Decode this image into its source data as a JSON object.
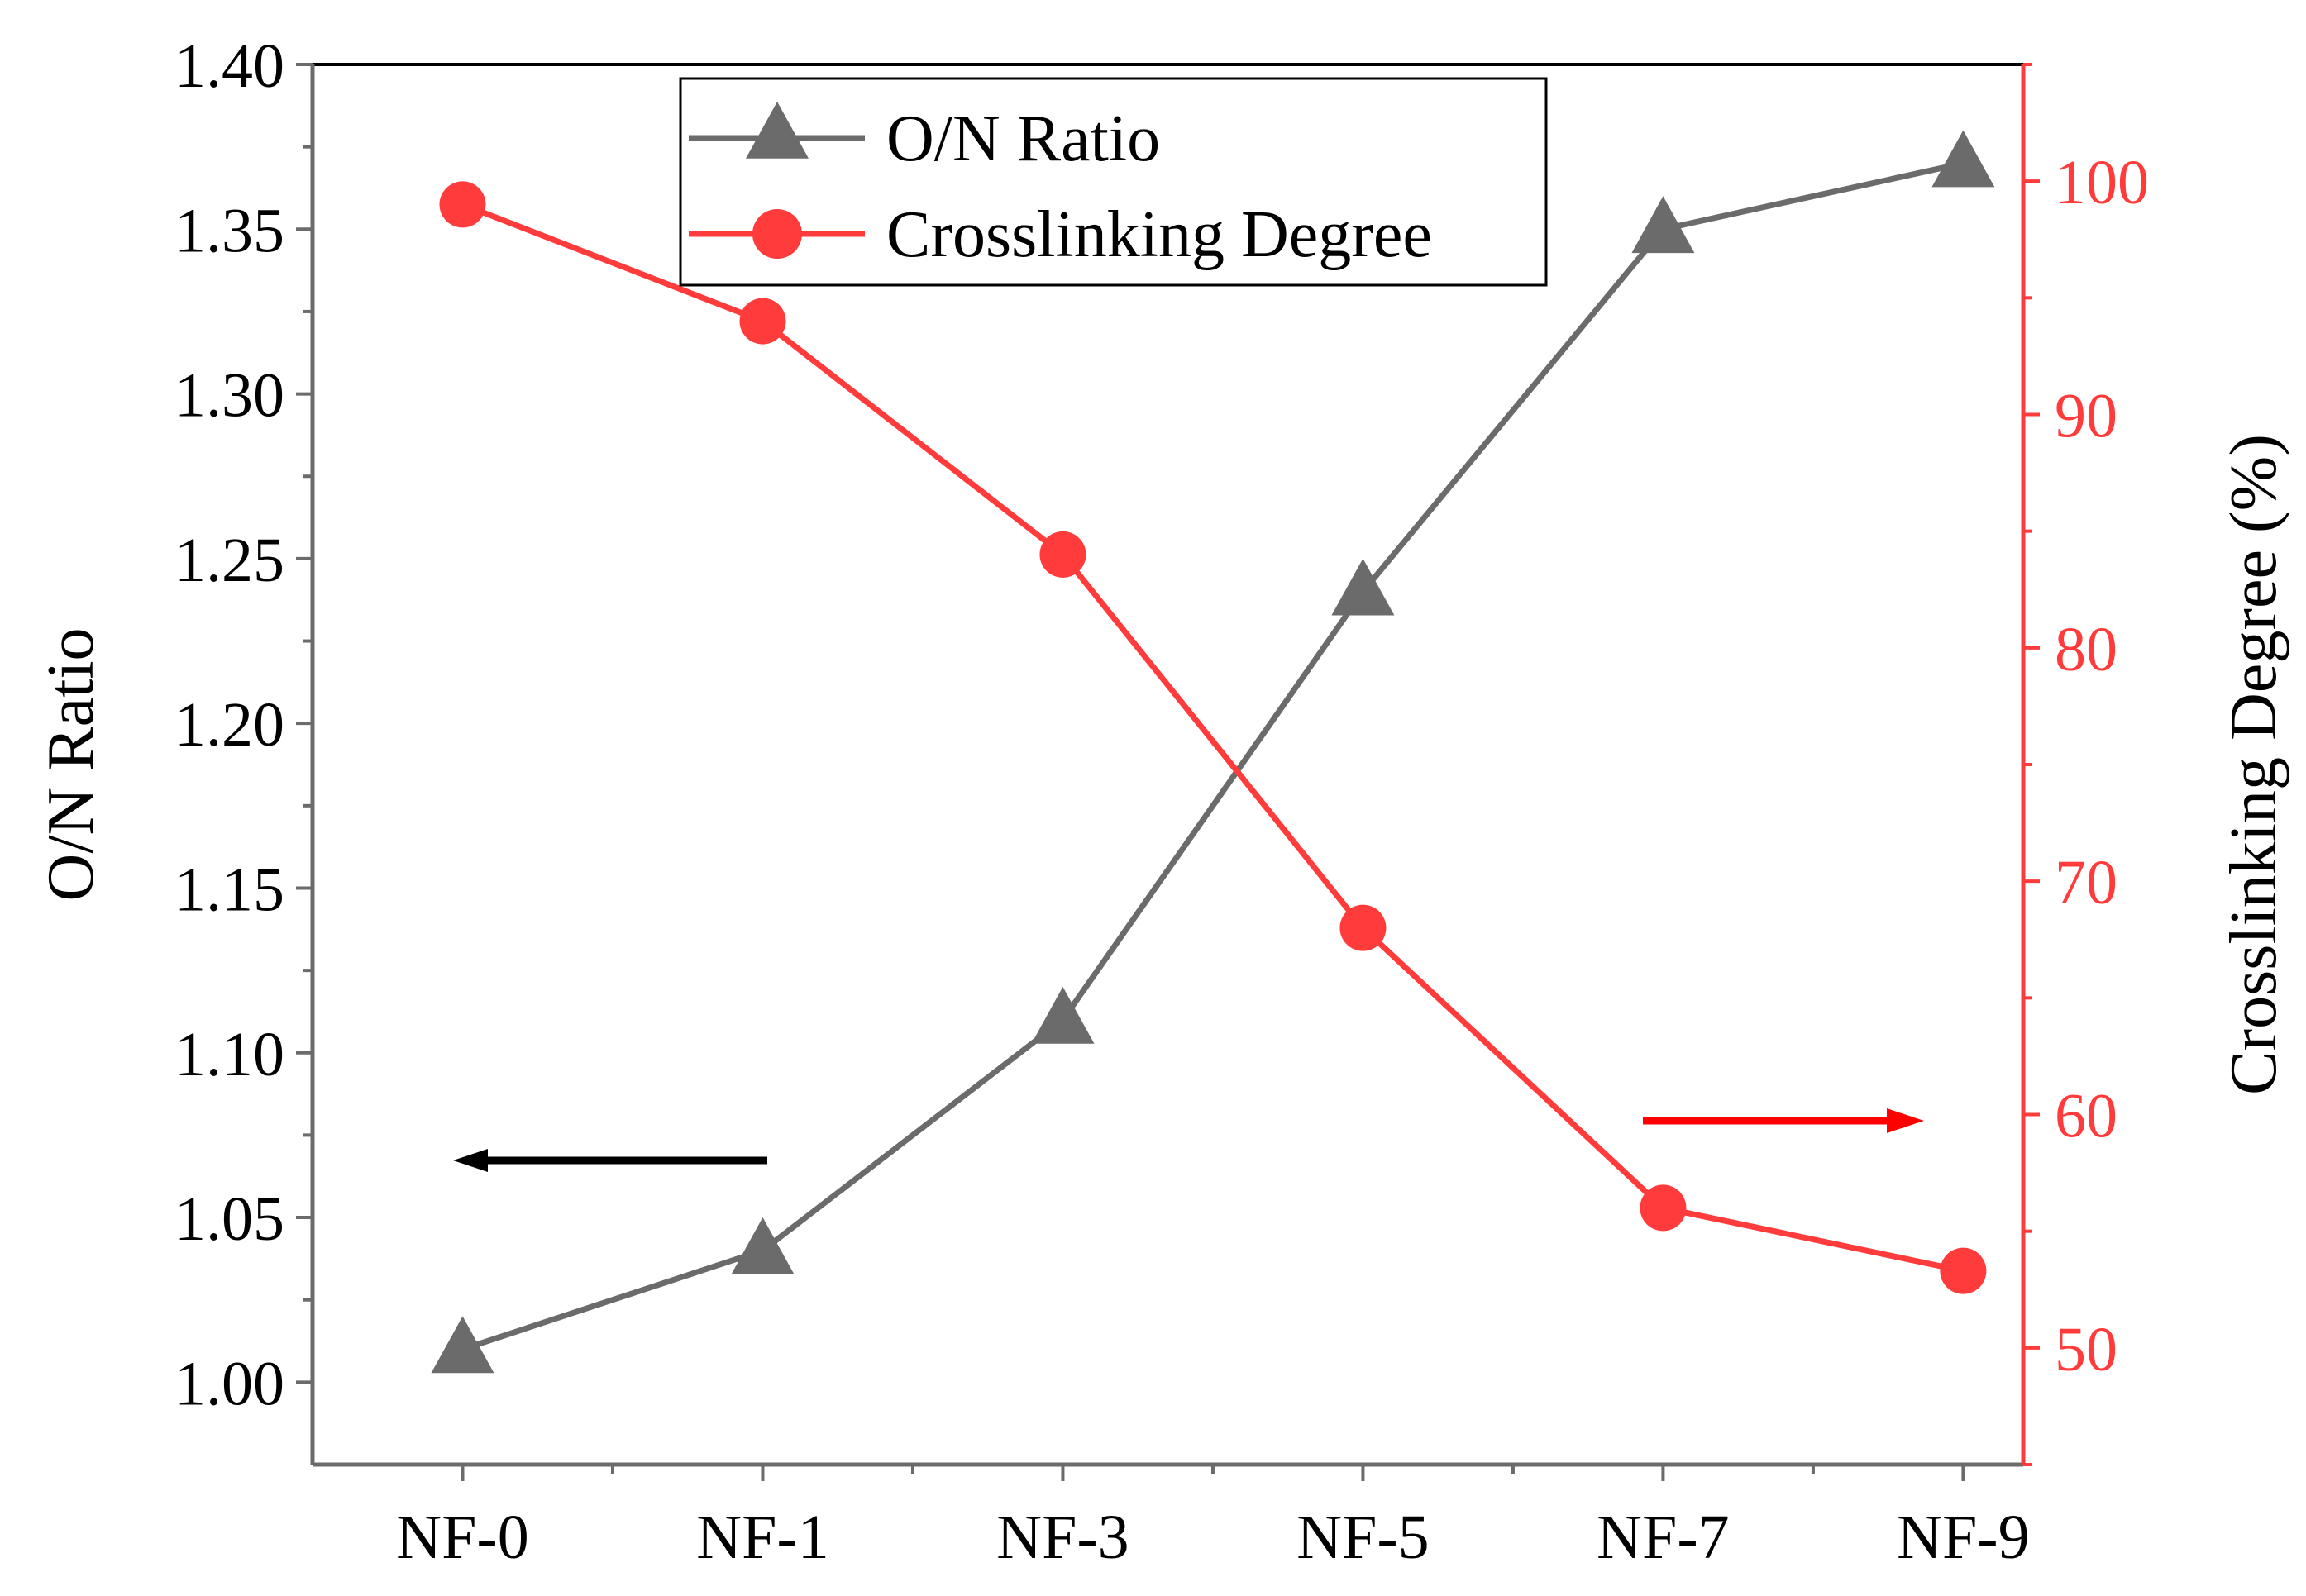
{
  "chart_data": {
    "type": "line",
    "categories": [
      "NF-0",
      "NF-1",
      "NF-3",
      "NF-5",
      "NF-7",
      "NF-9"
    ],
    "series": [
      {
        "name": "O/N Ratio",
        "axis": "left",
        "marker": "triangle",
        "color": "#6b6b6b",
        "values": [
          1.01,
          1.04,
          1.11,
          1.24,
          1.35,
          1.37
        ]
      },
      {
        "name": "Crosslinking Degree",
        "axis": "right",
        "marker": "circle",
        "color": "#ff3b3b",
        "values": [
          99,
          94,
          84,
          68,
          56,
          53.3
        ]
      }
    ],
    "left_axis": {
      "label": "O/N Ratio",
      "ylim": [
        0.975,
        1.4
      ],
      "ticks": [
        1.0,
        1.05,
        1.1,
        1.15,
        1.2,
        1.25,
        1.3,
        1.35,
        1.4
      ],
      "tick_labels": [
        "1.00",
        "1.05",
        "1.10",
        "1.15",
        "1.20",
        "1.25",
        "1.30",
        "1.35",
        "1.40"
      ],
      "color": "#000000"
    },
    "right_axis": {
      "label": "Crosslinking Degree (%)",
      "ylim": [
        45,
        105
      ],
      "ticks": [
        50,
        60,
        70,
        80,
        90,
        100
      ],
      "tick_labels": [
        "50",
        "60",
        "70",
        "80",
        "90",
        "100"
      ],
      "color": "#ff3b3b"
    },
    "legend": {
      "placement": "top-center",
      "entries": [
        "O/N Ratio",
        "Crosslinking Degree"
      ]
    },
    "annotations": [
      {
        "type": "arrow",
        "direction": "left",
        "color": "#000000",
        "meaning": "O/N Ratio uses left axis"
      },
      {
        "type": "arrow",
        "direction": "right",
        "color": "#ff0000",
        "meaning": "Crosslinking Degree uses right axis"
      }
    ]
  }
}
